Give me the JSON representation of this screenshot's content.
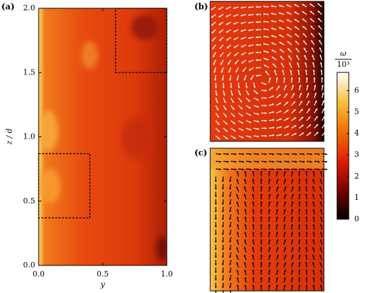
{
  "chart_data": [
    {
      "type": "field",
      "panel": "(a)",
      "xlabel": "y",
      "ylabel": "z / d",
      "xlim": [
        0,
        1
      ],
      "ylim": [
        0,
        2
      ],
      "xticks": [
        {
          "value": 0,
          "label": "0.0"
        },
        {
          "value": 0.5,
          "label": "0.5"
        },
        {
          "value": 1,
          "label": "1.0"
        }
      ],
      "yticks": [
        {
          "value": 0,
          "label": "0.0"
        },
        {
          "value": 0.5,
          "label": "0.5"
        },
        {
          "value": 1,
          "label": "1.0"
        },
        {
          "value": 1.5,
          "label": "1.5"
        },
        {
          "value": 2,
          "label": "2.0"
        }
      ],
      "regions": [
        {
          "x": [
            0,
            0.4
          ],
          "y": [
            0.37,
            0.87
          ]
        },
        {
          "x": [
            0.6,
            1
          ],
          "y": [
            1.5,
            2
          ]
        }
      ]
    },
    {
      "type": "quiver",
      "panel": "(b)",
      "arrow_color": "#ffffff"
    },
    {
      "type": "quiver",
      "panel": "(c)",
      "arrow_color": "#000000"
    },
    {
      "type": "colorbar",
      "label_top": "ω",
      "label_bottom": "10³",
      "ylim": [
        0,
        6.85
      ],
      "yticks": [
        0,
        1,
        2,
        3,
        4,
        5,
        6
      ],
      "colors": [
        "#000000",
        "#7a0000",
        "#e02000",
        "#f07000",
        "#f8c040",
        "#ffffff"
      ]
    }
  ]
}
